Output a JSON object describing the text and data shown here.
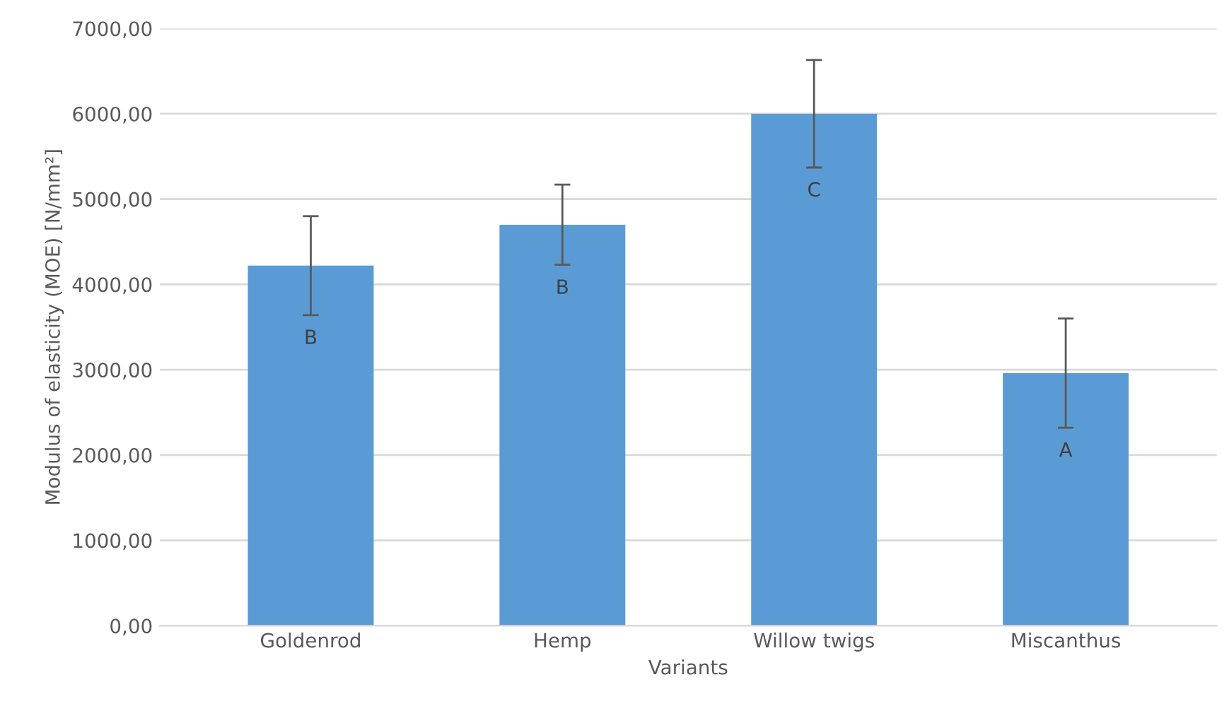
{
  "chart_data": {
    "type": "bar",
    "xlabel": "Variants",
    "ylabel": "Modulus of elasticity (MOE) [N/mm²]",
    "categories": [
      "Goldenrod",
      "Hemp",
      "Willow twigs",
      "Miscanthus"
    ],
    "values": [
      4220,
      4700,
      6000,
      2960
    ],
    "errors": [
      580,
      470,
      630,
      640
    ],
    "color": "#5b9bd5",
    "ylim": [
      0,
      7000
    ],
    "yticks": [
      {
        "value": 0,
        "label": "0,00"
      },
      {
        "value": 1000,
        "label": "1000,00"
      },
      {
        "value": 2000,
        "label": "2000,00"
      },
      {
        "value": 3000,
        "label": "3000,00"
      },
      {
        "value": 4000,
        "label": "4000,00"
      },
      {
        "value": 5000,
        "label": "5000,00"
      },
      {
        "value": 6000,
        "label": "6000,00"
      },
      {
        "value": 7000,
        "label": "7000,00"
      }
    ],
    "grid": "y",
    "annotations": [
      "B",
      "B",
      "C",
      "A"
    ]
  }
}
